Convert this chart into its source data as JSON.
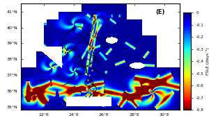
{
  "title": "(E)",
  "xlim": [
    20.5,
    31.0
  ],
  "ylim": [
    34.8,
    41.5
  ],
  "xticks": [
    22,
    24,
    26,
    28,
    30
  ],
  "yticks": [
    35,
    36,
    37,
    38,
    39,
    40,
    41
  ],
  "xlabel_ticks": [
    "22°E",
    "24°E",
    "26°E",
    "28°E",
    "30°E"
  ],
  "ylabel_ticks": [
    "35°N",
    "36°N",
    "37°N",
    "38°N",
    "39°N",
    "40°N",
    "41°N"
  ],
  "cbar_label": "FSLE (days⁻¹)",
  "cbar_ticks": [
    0,
    -0.1,
    -0.2,
    -0.3,
    -0.4,
    -0.5,
    -0.6,
    -0.7,
    -0.8
  ],
  "vmin": -0.8,
  "vmax": 0.0,
  "ocean_base": -0.02,
  "colormap": "jet",
  "dpi": 100,
  "figsize": [
    3.0,
    1.8
  ],
  "drifter_dots": [
    [
      25.2,
      40.6
    ],
    [
      25.4,
      40.3
    ],
    [
      25.3,
      40.0
    ],
    [
      25.1,
      39.7
    ],
    [
      25.3,
      39.4
    ],
    [
      25.2,
      39.1
    ],
    [
      25.1,
      38.8
    ],
    [
      25.0,
      38.5
    ],
    [
      25.2,
      38.2
    ],
    [
      25.1,
      37.9
    ],
    [
      25.0,
      37.6
    ],
    [
      25.2,
      37.3
    ],
    [
      25.0,
      37.0
    ],
    [
      24.9,
      36.7
    ],
    [
      25.1,
      36.4
    ],
    [
      25.3,
      36.1
    ],
    [
      25.0,
      35.9
    ],
    [
      24.8,
      35.7
    ]
  ]
}
